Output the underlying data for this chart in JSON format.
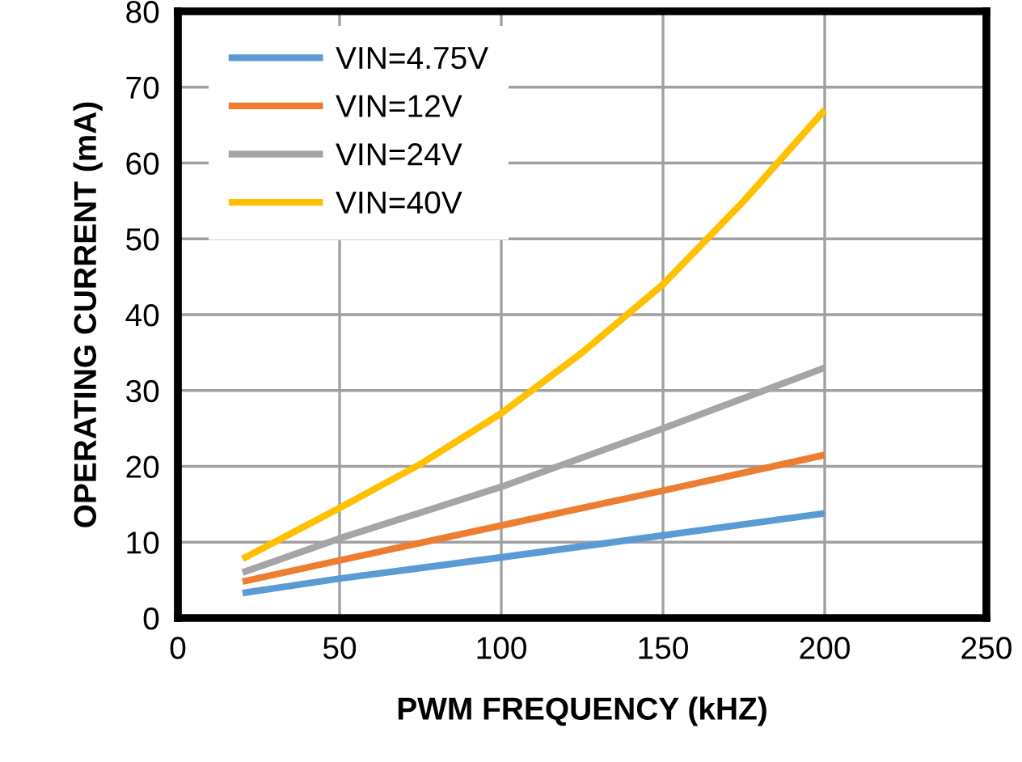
{
  "chart_data": {
    "type": "line",
    "xlabel": "PWM FREQUENCY (kHZ)",
    "ylabel": "OPERATING CURRENT (mA)",
    "xlim": [
      0,
      250
    ],
    "xticks": [
      0,
      50,
      100,
      150,
      200,
      250
    ],
    "ylim": [
      0,
      80
    ],
    "yticks": [
      0,
      10,
      20,
      30,
      40,
      50,
      60,
      70,
      80
    ],
    "grid": true,
    "legend": "top left",
    "marker": "none",
    "line_style": "solid",
    "series": [
      {
        "name": "VIN=4.75V",
        "color": "#5b9bd5",
        "x": [
          20,
          50,
          100,
          150,
          200
        ],
        "values": [
          3.3,
          5.2,
          8,
          10.9,
          13.8
        ]
      },
      {
        "name": "VIN=12V",
        "color": "#ed7d31",
        "x": [
          20,
          50,
          100,
          150,
          200
        ],
        "values": [
          4.8,
          7.6,
          12.2,
          16.8,
          21.5
        ]
      },
      {
        "name": "VIN=24V",
        "color": "#a5a5a5",
        "x": [
          20,
          50,
          100,
          150,
          200
        ],
        "values": [
          6,
          10.5,
          17.3,
          25,
          33
        ]
      },
      {
        "name": "VIN=40V",
        "color": "#ffc000",
        "x": [
          20,
          50,
          75,
          100,
          125,
          150,
          175,
          200
        ],
        "values": [
          7.8,
          14.5,
          20.3,
          27,
          35,
          44,
          55,
          67
        ]
      }
    ]
  }
}
